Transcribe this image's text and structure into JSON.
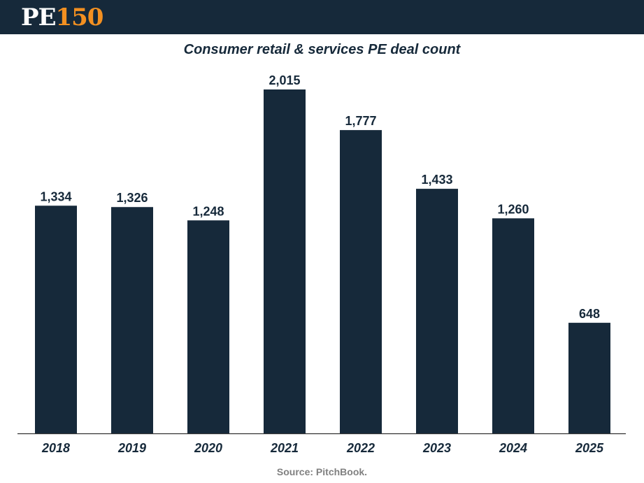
{
  "brand": {
    "logo_prefix": "PE",
    "logo_number": "150",
    "header_color": "#16293a",
    "accent_color": "#f39021"
  },
  "chart_data": {
    "type": "bar",
    "title": "Consumer retail & services PE deal count",
    "categories": [
      "2018",
      "2019",
      "2020",
      "2021",
      "2022",
      "2023",
      "2024",
      "2025"
    ],
    "values": [
      1334,
      1326,
      1248,
      2015,
      1777,
      1433,
      1260,
      648
    ],
    "value_labels": [
      "1,334",
      "1,326",
      "1,248",
      "2,015",
      "1,777",
      "1,433",
      "1,260",
      "648"
    ],
    "xlabel": "",
    "ylabel": "",
    "ylim": [
      0,
      2015
    ],
    "grid": false,
    "legend": "none",
    "bar_color": "#16293a"
  },
  "footer": {
    "source": "Source: PitchBook."
  }
}
